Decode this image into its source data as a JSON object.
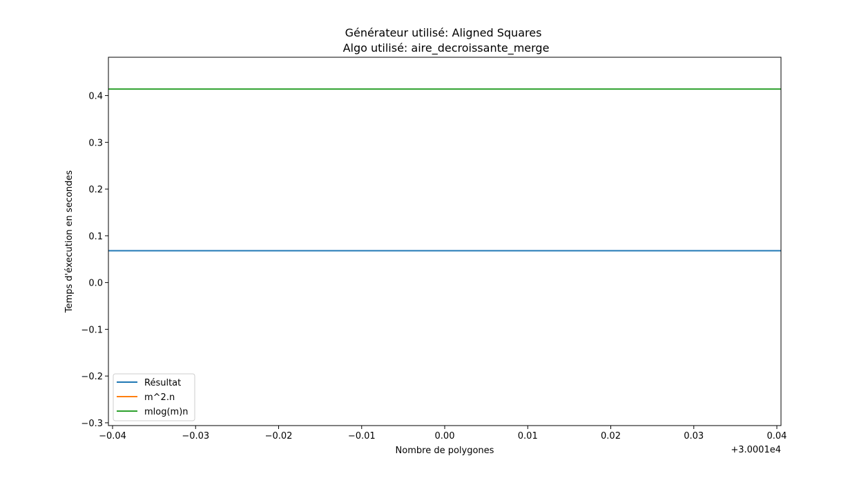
{
  "chart_data": {
    "type": "line",
    "title_line1": "Générateur utilisé: Aligned Squares",
    "title_line2": "Algo utilisé: aire_decroissante_merge",
    "xlabel": "Nombre de polygones",
    "ylabel": "Temps d'éxecution en secondes",
    "x_offset_label": "+3.0001e4",
    "xlim": [
      -0.0405,
      0.0405
    ],
    "ylim": [
      -0.306,
      0.482
    ],
    "x_ticks": [
      -0.04,
      -0.03,
      -0.02,
      -0.01,
      0.0,
      0.01,
      0.02,
      0.03,
      0.04
    ],
    "x_tick_labels": [
      "−0.04",
      "−0.03",
      "−0.02",
      "−0.01",
      "0.00",
      "0.01",
      "0.02",
      "0.03",
      "0.04"
    ],
    "y_ticks": [
      -0.3,
      -0.2,
      -0.1,
      0.0,
      0.1,
      0.2,
      0.3,
      0.4
    ],
    "y_tick_labels": [
      "−0.3",
      "−0.2",
      "−0.1",
      "0.0",
      "0.1",
      "0.2",
      "0.3",
      "0.4"
    ],
    "grid": false,
    "legend_position": "lower-left",
    "series": [
      {
        "name": "Résultat",
        "color": "#1f77b4",
        "x": [
          -0.0405,
          0.0405
        ],
        "y": [
          0.068,
          0.068
        ]
      },
      {
        "name": "m^2.n",
        "color": "#ff7f0e",
        "x": [],
        "y": []
      },
      {
        "name": "mlog(m)n",
        "color": "#2ca02c",
        "x": [
          -0.0405,
          0.0405
        ],
        "y": [
          0.414,
          0.414
        ]
      }
    ]
  }
}
